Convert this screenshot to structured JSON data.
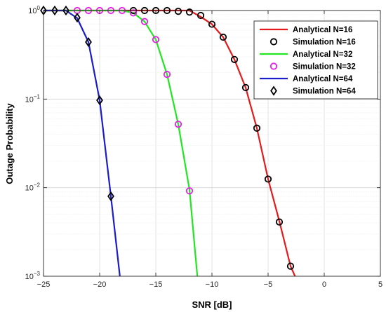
{
  "chart_data": {
    "type": "line",
    "title": "",
    "xlabel": "SNR [dB]",
    "ylabel": "Outage Probability",
    "xlim": [
      -25,
      5
    ],
    "ylim": [
      0.001,
      1
    ],
    "yscale": "log",
    "grid": true,
    "legend_position": "top-right",
    "x_ticks": [
      "−25",
      "−20",
      "−15",
      "−10",
      "−5",
      "0",
      "5"
    ],
    "y_ticks": [
      {
        "base": "10",
        "exp": "0"
      },
      {
        "base": "10",
        "exp": "−1"
      },
      {
        "base": "10",
        "exp": "−2"
      },
      {
        "base": "10",
        "exp": "−3"
      }
    ],
    "series": [
      {
        "name": "Analytical N=16",
        "kind": "line",
        "color": "#e41a1c",
        "x": [
          -25,
          -12,
          -11,
          -10,
          -9,
          -8,
          -7,
          -6,
          -5,
          -4,
          -3,
          -2.6
        ],
        "y": [
          1,
          1,
          0.85,
          0.7,
          0.5,
          0.28,
          0.135,
          0.047,
          0.0125,
          0.0042,
          0.0013,
          0.001
        ]
      },
      {
        "name": "Simulation N=16",
        "kind": "marker",
        "marker": "circle",
        "color": "#000000",
        "x": [
          -17,
          -16,
          -15,
          -14,
          -13,
          -12,
          -11,
          -10,
          -9,
          -8,
          -7,
          -6,
          -5,
          -4,
          -3
        ],
        "y": [
          1,
          1,
          1,
          1,
          0.98,
          0.96,
          0.88,
          0.7,
          0.5,
          0.28,
          0.135,
          0.047,
          0.0125,
          0.0041,
          0.0013
        ]
      },
      {
        "name": "Analytical N=32",
        "kind": "line",
        "color": "#22e622",
        "x": [
          -25,
          -18,
          -17,
          -16,
          -15,
          -14,
          -13,
          -12,
          -11.3
        ],
        "y": [
          1,
          1,
          0.94,
          0.75,
          0.47,
          0.19,
          0.052,
          0.0095,
          0.001
        ]
      },
      {
        "name": "Simulation N=32",
        "kind": "marker",
        "marker": "circle",
        "color": "#e61ee6",
        "x": [
          -22,
          -21,
          -20,
          -19,
          -18,
          -17,
          -16,
          -15,
          -14,
          -13,
          -12
        ],
        "y": [
          1,
          1,
          1,
          1,
          1,
          0.94,
          0.75,
          0.47,
          0.19,
          0.052,
          0.0092
        ]
      },
      {
        "name": "Analytical N=64",
        "kind": "line",
        "color": "#1c1cc8",
        "x": [
          -25,
          -23,
          -22,
          -21,
          -20,
          -19,
          -18.2
        ],
        "y": [
          1,
          1,
          0.82,
          0.44,
          0.097,
          0.008,
          0.001
        ]
      },
      {
        "name": "Simulation N=64",
        "kind": "marker",
        "marker": "diamond",
        "color": "#000000",
        "x": [
          -25,
          -24,
          -23,
          -22,
          -21,
          -20,
          -19
        ],
        "y": [
          1,
          1,
          1,
          0.83,
          0.44,
          0.097,
          0.008
        ]
      }
    ]
  }
}
